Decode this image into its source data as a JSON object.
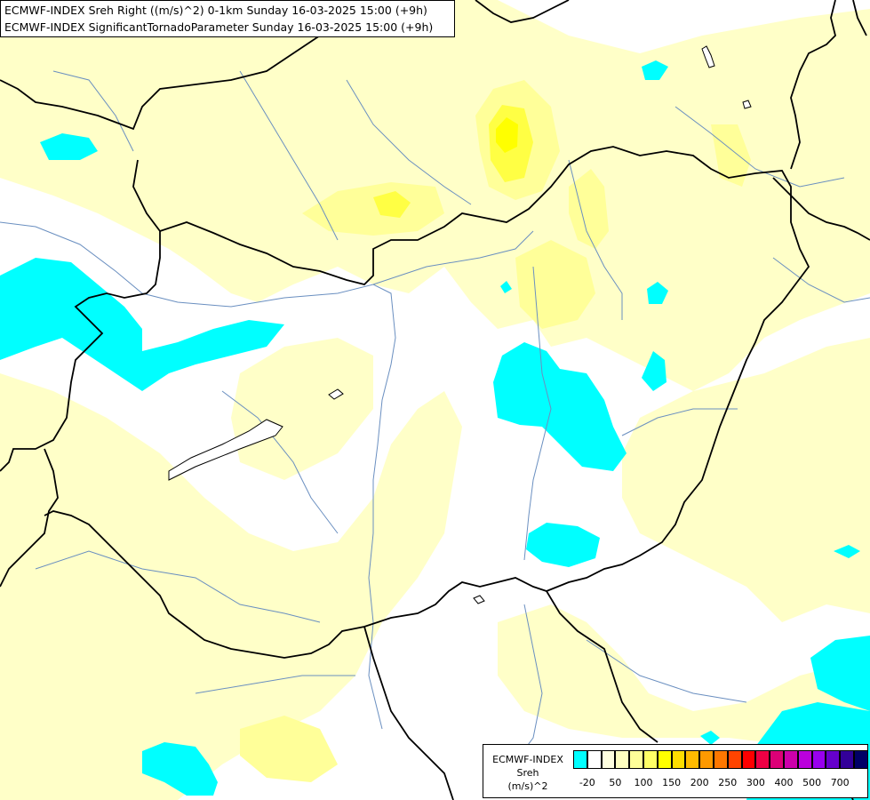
{
  "title": {
    "line1": "ECMWF-INDEX Sreh Right ((m/s)^2) 0-1km Sunday 16-03-2025 15:00 (+9h)",
    "line2": "ECMWF-INDEX SignificantTornadoParameter Sunday 16-03-2025 15:00 (+9h)"
  },
  "legend": {
    "name_line1": "ECMWF-INDEX",
    "name_line2": "Sreh",
    "unit": "(m/s)^2",
    "colors": [
      "#00ffff",
      "#ffffff",
      "#ffffe0",
      "#ffffc0",
      "#ffff99",
      "#ffff66",
      "#ffff00",
      "#ffdd00",
      "#ffbb00",
      "#ff9900",
      "#ff7700",
      "#ff4400",
      "#ff0000",
      "#ee0044",
      "#dd0077",
      "#cc00aa",
      "#bb00dd",
      "#9900ee",
      "#6600cc",
      "#330099",
      "#000066"
    ],
    "ticks": [
      "-20",
      "50",
      "100",
      "150",
      "200",
      "250",
      "300",
      "400",
      "500",
      "700"
    ]
  },
  "map_colors": {
    "land": "#ffffff",
    "light_yellow": "#ffffc8",
    "yellow": "#ffff99",
    "bright_yellow": "#ffff44",
    "core": "#ffff00",
    "cyan": "#00ffff",
    "rivers": "#6a8fc0",
    "borders": "#000000"
  }
}
